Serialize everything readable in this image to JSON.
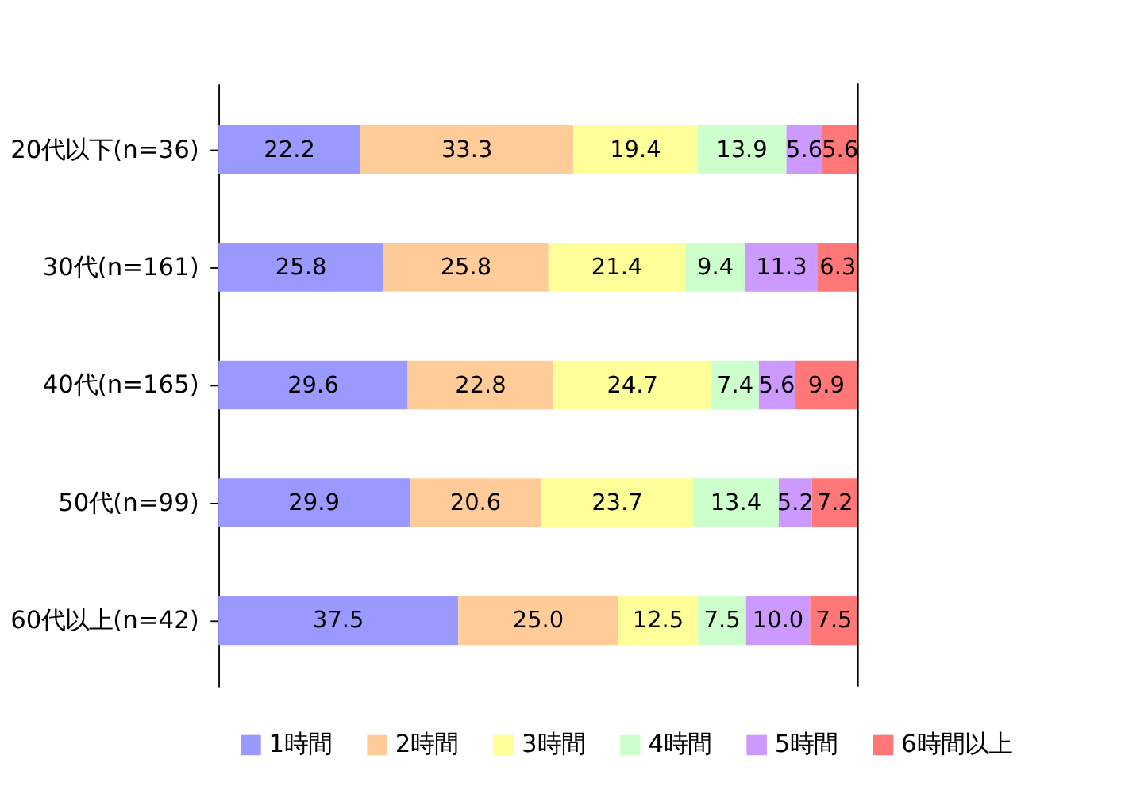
{
  "chart_data": {
    "type": "bar",
    "orientation": "horizontal",
    "stacked": true,
    "tick_labels": "y",
    "legend": "bottom",
    "grid": false,
    "xlim": [
      0,
      100
    ],
    "categories": [
      "20代以下(n=36)",
      "30代(n=161)",
      "40代(n=165)",
      "50代(n=99)",
      "60代以上(n=42)"
    ],
    "series": [
      {
        "name": "1時間",
        "color": "#9999ff",
        "values": [
          22.2,
          25.8,
          29.6,
          29.9,
          37.5
        ],
        "value_labels": [
          "22.2",
          "25.8",
          "29.6",
          "29.9",
          "37.5"
        ]
      },
      {
        "name": "2時間",
        "color": "#ffcc99",
        "values": [
          33.3,
          25.8,
          22.8,
          20.6,
          25.0
        ],
        "value_labels": [
          "33.3",
          "25.8",
          "22.8",
          "20.6",
          "25.0"
        ]
      },
      {
        "name": "3時間",
        "color": "#ffff99",
        "values": [
          19.4,
          21.4,
          24.7,
          23.7,
          12.5
        ],
        "value_labels": [
          "19.4",
          "21.4",
          "24.7",
          "23.7",
          "12.5"
        ]
      },
      {
        "name": "4時間",
        "color": "#ccffcc",
        "values": [
          13.9,
          9.4,
          7.4,
          13.4,
          7.5
        ],
        "value_labels": [
          "13.9",
          "9.4",
          "7.4",
          "13.4",
          "7.5"
        ]
      },
      {
        "name": "5時間",
        "color": "#cc99ff",
        "values": [
          5.6,
          11.3,
          5.6,
          5.2,
          10.0
        ],
        "value_labels": [
          "5.6",
          "11.3",
          "5.6",
          "5.2",
          "10.0"
        ]
      },
      {
        "name": "6時間以上",
        "color": "#ff7777",
        "values": [
          5.6,
          6.3,
          9.9,
          7.2,
          7.5
        ],
        "value_labels": [
          "5.6",
          "6.3",
          "9.9",
          "7.2",
          "7.5"
        ]
      }
    ]
  }
}
